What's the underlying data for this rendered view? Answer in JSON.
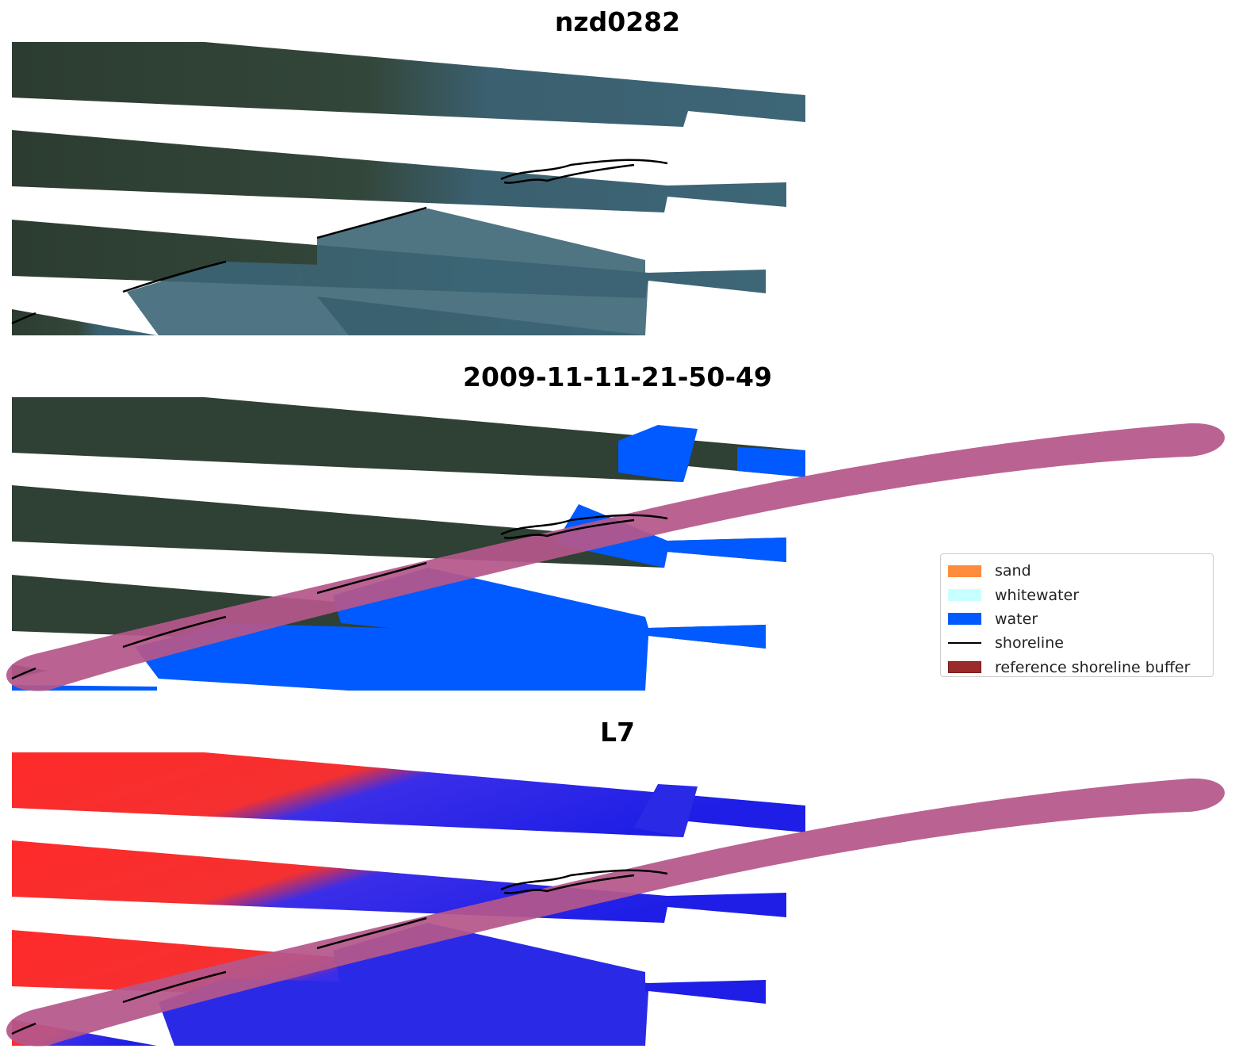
{
  "panels": [
    {
      "title": "nzd0282"
    },
    {
      "title": "2009-11-11-21-50-49"
    },
    {
      "title": "L7"
    }
  ],
  "legend": {
    "items": [
      {
        "label": "sand",
        "color": "#ff8c3c",
        "kind": "patch"
      },
      {
        "label": "whitewater",
        "color": "#c8ffff",
        "kind": "patch"
      },
      {
        "label": "water",
        "color": "#005aff",
        "kind": "patch"
      },
      {
        "label": "shoreline",
        "color": "#000000",
        "kind": "line"
      },
      {
        "label": "reference shoreline buffer",
        "color": "#9b2a2a",
        "kind": "patch"
      }
    ]
  },
  "colors": {
    "land_rgb": "#2f3f33",
    "sea_rgb": "#3a6472",
    "water_class": "#005aff",
    "index_positive": "#ff2020",
    "index_negative": "#2020ee",
    "buffer_overlay": "#b5578b"
  }
}
